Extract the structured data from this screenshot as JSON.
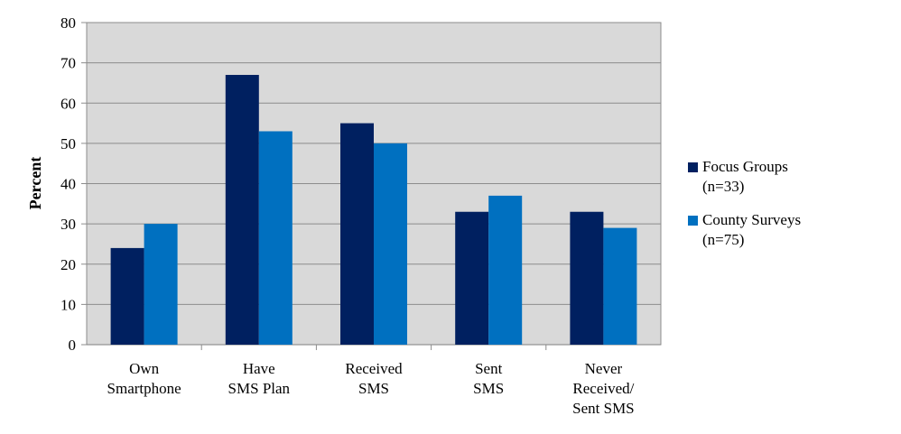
{
  "chart_data": {
    "type": "bar",
    "title": "",
    "xlabel": "",
    "ylabel": "Percent",
    "ylim": [
      0,
      80
    ],
    "yticks": [
      0,
      10,
      20,
      30,
      40,
      50,
      60,
      70,
      80
    ],
    "grid": true,
    "legend_position": "right",
    "categories": [
      [
        "Own",
        "Smartphone"
      ],
      [
        "Have",
        "SMS Plan"
      ],
      [
        "Received",
        "SMS"
      ],
      [
        "Sent",
        "SMS"
      ],
      [
        "Never",
        "Received/",
        "Sent SMS"
      ]
    ],
    "series": [
      {
        "name_lines": [
          "Focus Groups",
          "(n=33)"
        ],
        "color": "#002060",
        "values": [
          24,
          67,
          55,
          33,
          33
        ]
      },
      {
        "name_lines": [
          "County Surveys",
          "(n=75)"
        ],
        "color": "#0070C0",
        "values": [
          30,
          53,
          50,
          37,
          29
        ]
      }
    ],
    "plot_background": "#D9D9D9"
  }
}
